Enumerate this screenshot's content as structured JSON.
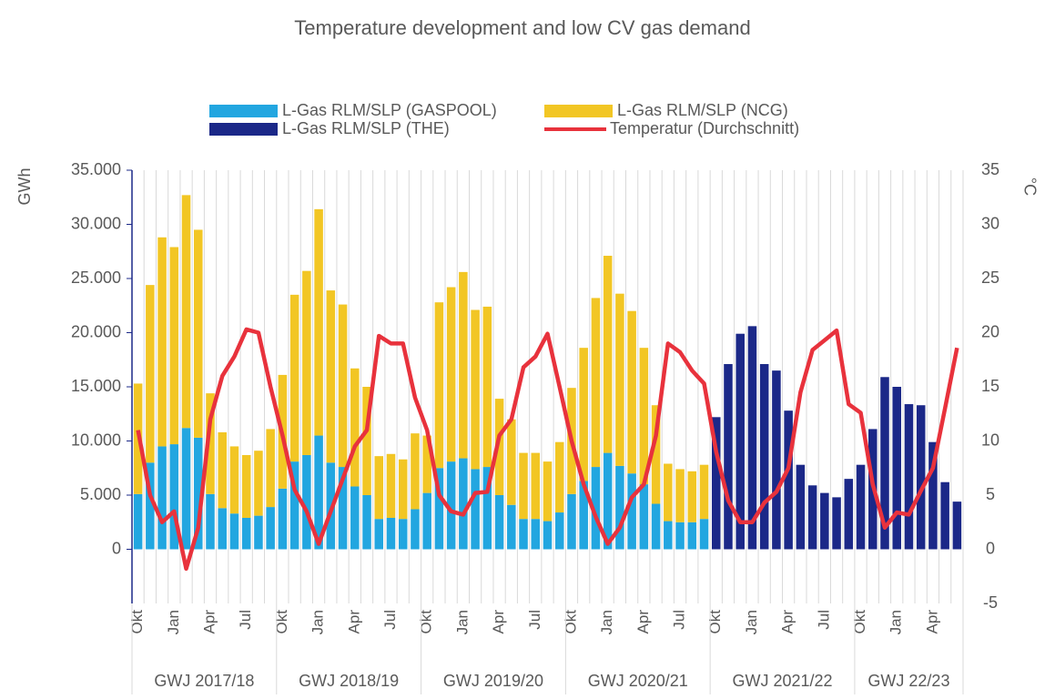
{
  "chart_data": {
    "type": "bar",
    "title": "Temperature development and low CV gas demand",
    "y_label": "GWh",
    "y2_label": "°C",
    "categories": [
      "Okt",
      null,
      null,
      "Jan",
      null,
      null,
      "Apr",
      null,
      null,
      "Jul",
      null,
      null,
      "Okt",
      null,
      null,
      "Jan",
      null,
      null,
      "Apr",
      null,
      null,
      "Jul",
      null,
      null,
      "Okt",
      null,
      null,
      "Jan",
      null,
      null,
      "Apr",
      null,
      null,
      "Jul",
      null,
      null,
      "Okt",
      null,
      null,
      "Jan",
      null,
      null,
      "Apr",
      null,
      null,
      "Jul",
      null,
      null,
      "Okt",
      null,
      null,
      "Jan",
      null,
      null,
      "Apr",
      null,
      null,
      "Jul",
      null,
      null,
      "Okt",
      null,
      null,
      "Jan",
      null,
      null,
      "Apr",
      null,
      null
    ],
    "groups": [
      "GWJ 2017/18",
      "GWJ 2018/19",
      "GWJ 2019/20",
      "GWJ 2020/21",
      "GWJ 2021/22",
      "GWJ 22/23"
    ],
    "series": [
      {
        "name": "L-Gas RLM/SLP (GASPOOL)",
        "color": "#22a6e0",
        "stack": true,
        "values": [
          5100,
          8000,
          9500,
          9700,
          11200,
          10300,
          5100,
          3800,
          3300,
          2900,
          3100,
          3900,
          5600,
          8100,
          8700,
          10500,
          8000,
          7600,
          5800,
          5000,
          2800,
          2900,
          2800,
          3700,
          5200,
          7500,
          8100,
          8400,
          7400,
          7600,
          5000,
          4100,
          2800,
          2800,
          2600,
          3400,
          5100,
          6300,
          7600,
          8900,
          7700,
          7000,
          6000,
          4200,
          2600,
          2500,
          2500,
          2800,
          null,
          null,
          null,
          null,
          null,
          null,
          null,
          null,
          null,
          null,
          null,
          null,
          null,
          null,
          null,
          null,
          null,
          null,
          null,
          null,
          null
        ]
      },
      {
        "name": "L-Gas RLM/SLP (NCG)",
        "color": "#f2c624",
        "stack": true,
        "values": [
          10200,
          16400,
          19300,
          18200,
          21500,
          19200,
          9300,
          7000,
          6200,
          5800,
          6000,
          7200,
          10500,
          15400,
          17000,
          20900,
          15900,
          15000,
          10900,
          10000,
          5800,
          5900,
          5500,
          7000,
          5300,
          15300,
          16100,
          17200,
          14700,
          14800,
          8900,
          7900,
          6100,
          6100,
          5500,
          6500,
          9800,
          12300,
          15600,
          18200,
          15900,
          15000,
          12600,
          9100,
          5300,
          4900,
          4700,
          5000,
          null,
          null,
          null,
          null,
          null,
          null,
          null,
          null,
          null,
          null,
          null,
          null,
          null,
          null,
          null,
          null,
          null,
          null,
          null,
          null,
          null
        ]
      },
      {
        "name": "L-Gas RLM/SLP (THE)",
        "color": "#1b2888",
        "values": [
          null,
          null,
          null,
          null,
          null,
          null,
          null,
          null,
          null,
          null,
          null,
          null,
          null,
          null,
          null,
          null,
          null,
          null,
          null,
          null,
          null,
          null,
          null,
          null,
          null,
          null,
          null,
          null,
          null,
          null,
          null,
          null,
          null,
          null,
          null,
          null,
          null,
          null,
          null,
          null,
          null,
          null,
          null,
          null,
          null,
          null,
          null,
          null,
          12200,
          17100,
          19900,
          20600,
          17100,
          16500,
          12800,
          7800,
          5900,
          5200,
          4800,
          6500,
          7800,
          11100,
          15900,
          15000,
          13400,
          13300,
          9900,
          6200,
          4400
        ]
      },
      {
        "name": "Temperatur (Durchschnitt)",
        "color": "#e8323c",
        "type": "line",
        "axis": "y2",
        "values": [
          11,
          5,
          2.5,
          3.5,
          -1.8,
          2,
          12,
          16,
          17.8,
          20.3,
          20,
          15,
          10.5,
          5.5,
          3.5,
          0.5,
          3.5,
          6.5,
          9.5,
          11,
          19.7,
          19,
          19,
          14,
          11,
          5,
          3.5,
          3.2,
          5.2,
          5.3,
          10.5,
          12,
          16.8,
          17.8,
          19.9,
          15,
          10,
          6,
          3,
          0.5,
          2,
          4.8,
          6,
          10.5,
          19,
          18.2,
          16.5,
          15.3,
          9,
          4.5,
          2.5,
          2.5,
          4.3,
          5.3,
          7.5,
          14.5,
          18.4,
          19.3,
          20.2,
          13.4,
          12.6,
          6,
          2,
          3.4,
          3.2,
          5.4,
          7.5,
          13,
          18.6
        ]
      }
    ],
    "ylim": [
      -5000,
      35000
    ],
    "yticks": [
      0,
      {
        "value": 5000,
        "label": "5.000"
      },
      {
        "value": 10000,
        "label": "10.000"
      },
      {
        "value": 15000,
        "label": "15.000"
      },
      {
        "value": 20000,
        "label": "20.000"
      },
      {
        "value": 25000,
        "label": "25.000"
      },
      {
        "value": 30000,
        "label": "30.000"
      },
      {
        "value": 35000,
        "label": "35.000"
      }
    ],
    "y2lim": [
      -5,
      35
    ],
    "y2ticks": [
      -5,
      0,
      5,
      10,
      15,
      20,
      25,
      30,
      35
    ],
    "grid": true
  }
}
